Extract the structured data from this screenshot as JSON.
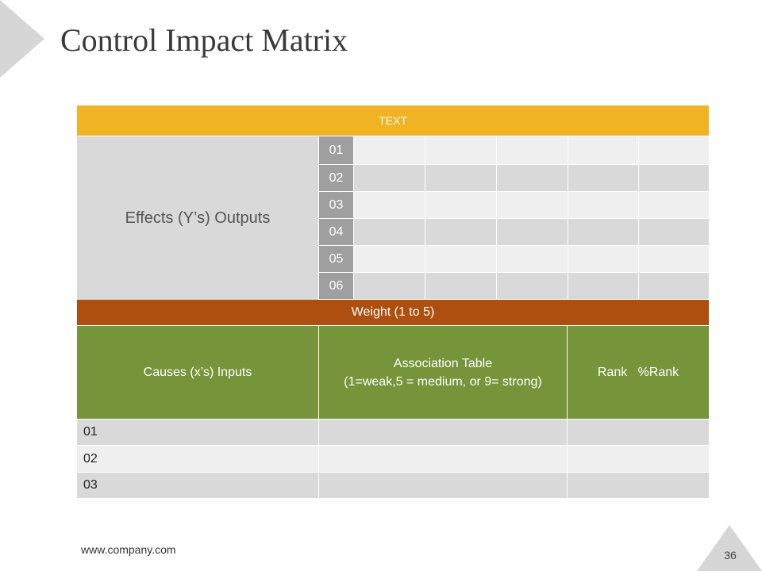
{
  "slide": {
    "title": "Control Impact Matrix",
    "footer_url": "www.company.com",
    "page_number": "36"
  },
  "matrix": {
    "header_text": "TEXT",
    "effects_label": "Effects (Y’s) Outputs",
    "effect_rows": [
      "01",
      "02",
      "03",
      "04",
      "05",
      "06"
    ],
    "weight_label": "Weight (1 to 5)",
    "causes_label": "Causes (x’s) Inputs",
    "association_line1": "Association Table",
    "association_line2": "(1=weak,5 = medium, or 9= strong)",
    "rank_label": "Rank   %Rank",
    "cause_rows": [
      "01",
      "02",
      "03"
    ]
  },
  "colors": {
    "header_bar": "#F0B323",
    "weight_bar": "#AE4F10",
    "causes_header": "#769439",
    "number_cell": "#9F9F9F",
    "row_light": "#EFEFEF",
    "row_mid": "#D9D9D9"
  }
}
